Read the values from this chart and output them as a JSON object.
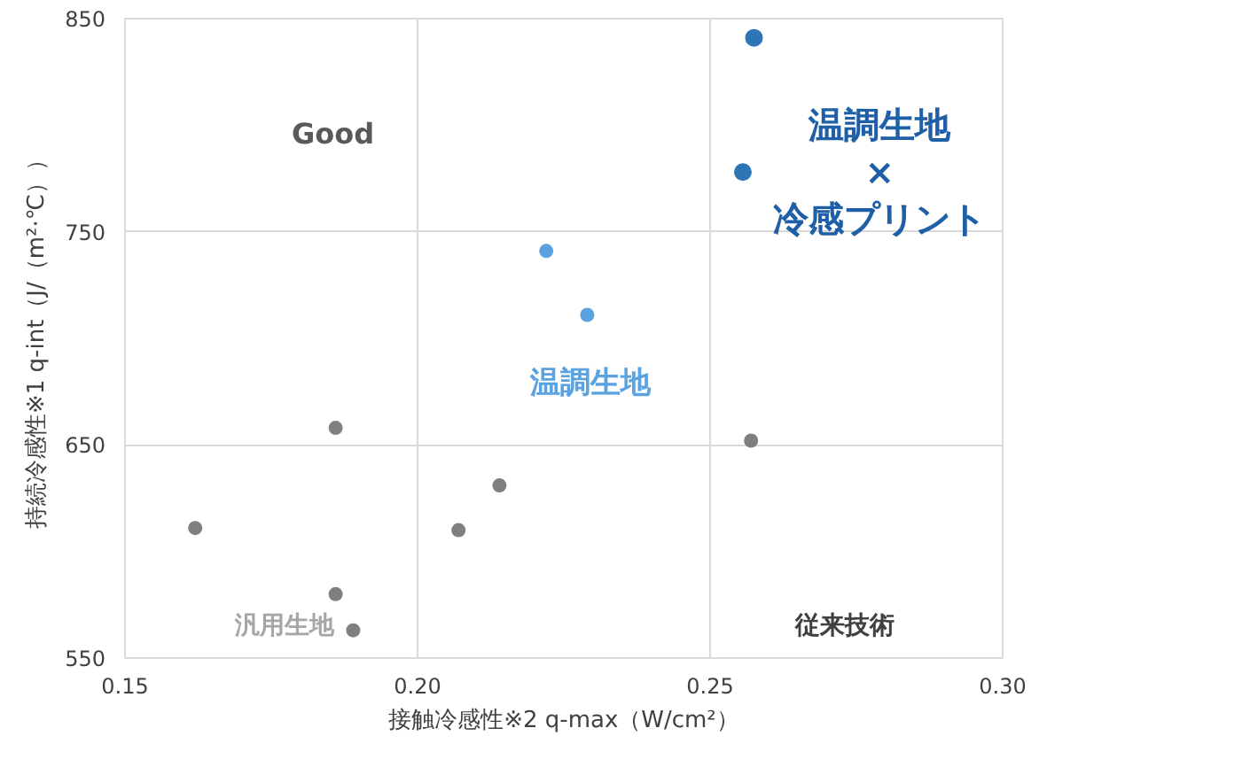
{
  "chart_data": {
    "type": "scatter",
    "xlabel": "接触冷感性※2 q-max（W/cm²）",
    "ylabel": "持続冷感性※1 q-int（J/（m²·℃））",
    "xlim": [
      0.15,
      0.3
    ],
    "xticks": [
      {
        "value": 0.15,
        "label": "0.15"
      },
      {
        "value": 0.2,
        "label": "0.20"
      },
      {
        "value": 0.25,
        "label": "0.25"
      },
      {
        "value": 0.3,
        "label": "0.30"
      }
    ],
    "ylim": [
      550,
      850
    ],
    "yticks": [
      550,
      650,
      750,
      850
    ],
    "grid": true,
    "marker": "circle",
    "series": [
      {
        "name": "汎用生地",
        "color": "#7f7f7f",
        "x": [
          0.162,
          0.186,
          0.186,
          0.189,
          0.207,
          0.214,
          0.257
        ],
        "values": [
          611,
          658,
          580,
          563,
          610,
          631,
          652
        ]
      },
      {
        "name": "温調生地",
        "color": "#5ba3e0",
        "x": [
          0.222,
          0.229
        ],
        "values": [
          741,
          711
        ]
      },
      {
        "name": "温調生地\n×\n冷感プリント",
        "color": "#2e75b6",
        "x": [
          0.2575,
          0.2556
        ],
        "values": [
          841,
          778
        ]
      }
    ],
    "annotations": [
      "Good",
      "従来技術"
    ]
  }
}
